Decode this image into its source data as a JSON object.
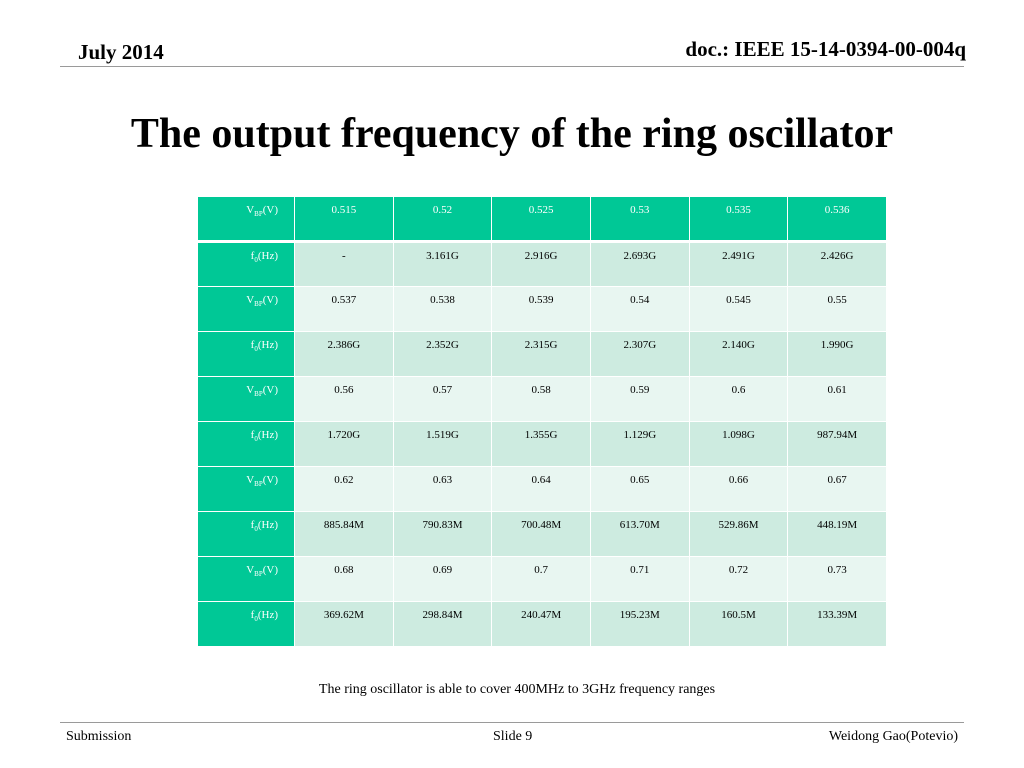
{
  "header": {
    "date": "July  2014",
    "doc": "doc.: IEEE 15-14-0394-00-004q"
  },
  "title": "The output frequency of the ring oscillator",
  "table": {
    "rows": [
      {
        "label_main": "V",
        "label_sub": "BP",
        "label_unit": "(V)",
        "values": [
          "0.515",
          "0.52",
          "0.525",
          "0.53",
          "0.535",
          "0.536"
        ]
      },
      {
        "label_main": "f",
        "label_sub": "0",
        "label_unit": "(Hz)",
        "values": [
          "-",
          "3.161G",
          "2.916G",
          "2.693G",
          "2.491G",
          "2.426G"
        ]
      },
      {
        "label_main": "V",
        "label_sub": "BP",
        "label_unit": "(V)",
        "values": [
          "0.537",
          "0.538",
          "0.539",
          "0.54",
          "0.545",
          "0.55"
        ]
      },
      {
        "label_main": "f",
        "label_sub": "0",
        "label_unit": "(Hz)",
        "values": [
          "2.386G",
          "2.352G",
          "2.315G",
          "2.307G",
          "2.140G",
          "1.990G"
        ]
      },
      {
        "label_main": "V",
        "label_sub": "BP",
        "label_unit": "(V)",
        "values": [
          "0.56",
          "0.57",
          "0.58",
          "0.59",
          "0.6",
          "0.61"
        ]
      },
      {
        "label_main": "f",
        "label_sub": "0",
        "label_unit": "(Hz)",
        "values": [
          "1.720G",
          "1.519G",
          "1.355G",
          "1.129G",
          "1.098G",
          "987.94M"
        ]
      },
      {
        "label_main": "V",
        "label_sub": "BP",
        "label_unit": "(V)",
        "values": [
          "0.62",
          "0.63",
          "0.64",
          "0.65",
          "0.66",
          "0.67"
        ]
      },
      {
        "label_main": "f",
        "label_sub": "0",
        "label_unit": "(Hz)",
        "values": [
          "885.84M",
          "790.83M",
          "700.48M",
          "613.70M",
          "529.86M",
          "448.19M"
        ]
      },
      {
        "label_main": "V",
        "label_sub": "BP",
        "label_unit": "(V)",
        "values": [
          "0.68",
          "0.69",
          "0.7",
          "0.71",
          "0.72",
          "0.73"
        ]
      },
      {
        "label_main": "f",
        "label_sub": "0",
        "label_unit": "(Hz)",
        "values": [
          "369.62M",
          "298.84M",
          "240.47M",
          "195.23M",
          "160.5M",
          "133.39M"
        ]
      }
    ]
  },
  "caption": "The ring oscillator is able to cover 400MHz to 3GHz frequency ranges",
  "footer": {
    "left": "Submission",
    "center": "Slide 9",
    "right": "Weidong Gao(Potevio)"
  },
  "colors": {
    "accent": "#00c896",
    "row_dark": "#cdebe0",
    "row_light": "#e8f6f1"
  }
}
